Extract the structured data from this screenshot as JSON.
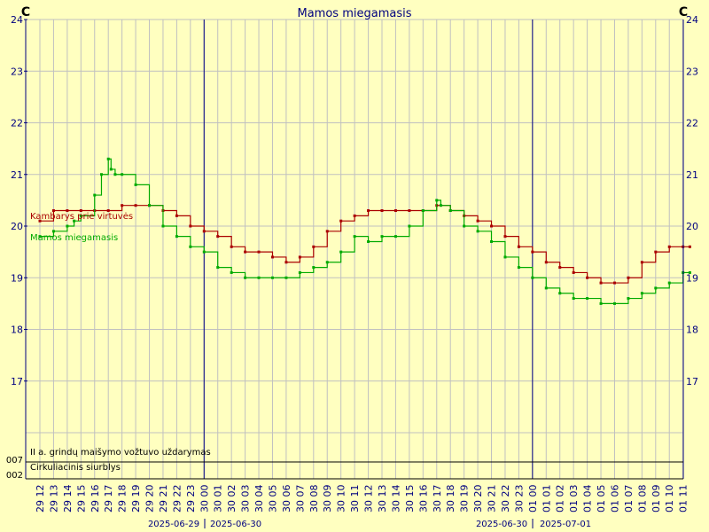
{
  "chart_data": {
    "type": "line",
    "title": "Mamos miegamasis",
    "y_unit_left": "C",
    "y_unit_right": "C",
    "ylim": [
      16,
      24
    ],
    "y_ticks": [
      "17",
      "18",
      "19",
      "20",
      "21",
      "22",
      "23",
      "24"
    ],
    "grid": true,
    "x_tick_labels": [
      "29 12",
      "29 13",
      "29 14",
      "29 15",
      "29 16",
      "29 17",
      "29 18",
      "29 19",
      "29 20",
      "29 21",
      "29 22",
      "29 23",
      "30 00",
      "30 01",
      "30 02",
      "30 03",
      "30 04",
      "30 05",
      "30 06",
      "30 07",
      "30 08",
      "30 09",
      "30 10",
      "30 11",
      "30 12",
      "30 13",
      "30 14",
      "30 15",
      "30 16",
      "30 17",
      "30 18",
      "30 19",
      "30 20",
      "30 21",
      "30 22",
      "30 23",
      "01 00",
      "01 01",
      "01 02",
      "01 03",
      "01 04",
      "01 05",
      "01 06",
      "01 07",
      "01 08",
      "01 09",
      "01 10",
      "01 11"
    ],
    "date_labels": [
      "2025-06-29",
      "2025-06-30",
      "2025-06-30",
      "2025-07-01"
    ],
    "series": [
      {
        "name": "Kambarys prie virtuvės",
        "color": "#aa0000",
        "x_hours": [
          0,
          1,
          2,
          3,
          4,
          5,
          6,
          7,
          8,
          9,
          10,
          11,
          12,
          13,
          14,
          15,
          16,
          17,
          18,
          19,
          20,
          21,
          22,
          23,
          24,
          25,
          26,
          27,
          28,
          29,
          30,
          31,
          32,
          33,
          34,
          35,
          36,
          37,
          38,
          39,
          40,
          41,
          42,
          43,
          44,
          45,
          46,
          47,
          47.5
        ],
        "values": [
          20.1,
          20.3,
          20.3,
          20.3,
          20.3,
          20.3,
          20.4,
          20.4,
          20.4,
          20.3,
          20.2,
          20.0,
          19.9,
          19.8,
          19.6,
          19.5,
          19.5,
          19.4,
          19.3,
          19.4,
          19.6,
          19.9,
          20.1,
          20.2,
          20.3,
          20.3,
          20.3,
          20.3,
          20.3,
          20.4,
          20.3,
          20.2,
          20.1,
          20.0,
          19.8,
          19.6,
          19.5,
          19.3,
          19.2,
          19.1,
          19.0,
          18.9,
          18.9,
          19.0,
          19.3,
          19.5,
          19.6,
          19.6,
          19.6
        ]
      },
      {
        "name": "Mamos miegamasis",
        "color": "#00aa00",
        "x_hours": [
          0,
          1,
          2,
          2.5,
          3,
          4,
          4.5,
          5,
          5.2,
          5.5,
          6,
          7,
          8,
          9,
          10,
          11,
          12,
          13,
          14,
          15,
          16,
          17,
          18,
          19,
          20,
          21,
          22,
          23,
          24,
          25,
          26,
          27,
          28,
          29,
          29.3,
          30,
          31,
          32,
          33,
          34,
          35,
          36,
          37,
          38,
          39,
          40,
          41,
          42,
          43,
          44,
          45,
          46,
          47,
          47.5
        ],
        "values": [
          19.8,
          19.9,
          20.0,
          20.1,
          20.2,
          20.6,
          21.0,
          21.3,
          21.1,
          21.0,
          21.0,
          20.8,
          20.4,
          20.0,
          19.8,
          19.6,
          19.5,
          19.2,
          19.1,
          19.0,
          19.0,
          19.0,
          19.0,
          19.1,
          19.2,
          19.3,
          19.5,
          19.8,
          19.7,
          19.8,
          19.8,
          20.0,
          20.3,
          20.5,
          20.4,
          20.3,
          20.0,
          19.9,
          19.7,
          19.4,
          19.2,
          19.0,
          18.8,
          18.7,
          18.6,
          18.6,
          18.5,
          18.5,
          18.6,
          18.7,
          18.8,
          18.9,
          19.1,
          19.1
        ]
      }
    ],
    "digital_rows": [
      {
        "label": "II a. grindų maišymo vožtuvo uždarymas"
      },
      {
        "label": "Cirkuliacinis siurblys"
      }
    ],
    "digital_ticks": [
      "007",
      "002"
    ],
    "colors": {
      "background": "#ffffc0",
      "grid": "#c0c0c0",
      "axis": "#000080",
      "day_separator": "#000080"
    }
  }
}
